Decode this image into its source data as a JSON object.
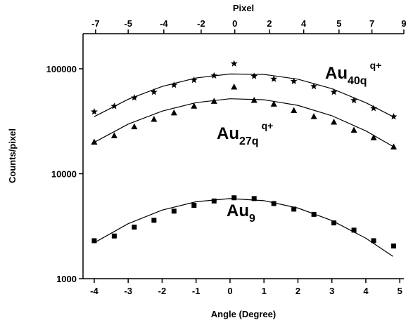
{
  "chart_data": {
    "type": "scatter",
    "x_label": "Angle (Degree)",
    "x2_label": "Pixel",
    "y_label": "Counts/pixel",
    "xlim": [
      -4.33,
      5.12
    ],
    "xticks": [
      -4,
      -3,
      -2,
      -1,
      0,
      1,
      2,
      3,
      4,
      5
    ],
    "x2ticks": [
      {
        "value": -3.96,
        "label": "-7"
      },
      {
        "value": -3.0,
        "label": "-5"
      },
      {
        "value": -1.95,
        "label": "-4"
      },
      {
        "value": -0.85,
        "label": "-2"
      },
      {
        "value": 0.14,
        "label": "0"
      },
      {
        "value": 1.16,
        "label": "2"
      },
      {
        "value": 2.17,
        "label": "4"
      },
      {
        "value": 3.21,
        "label": "5"
      },
      {
        "value": 4.18,
        "label": "7"
      },
      {
        "value": 5.12,
        "label": "9"
      }
    ],
    "ylim": [
      1000,
      216000
    ],
    "yticks": [
      1000,
      10000,
      100000
    ],
    "log_y": true,
    "x": [
      -4,
      -3.41,
      -2.82,
      -2.24,
      -1.65,
      -1.06,
      -0.47,
      0.12,
      0.71,
      1.29,
      1.88,
      2.47,
      3.06,
      3.65,
      4.23,
      4.82
    ],
    "fit_x": [
      -4,
      -3,
      -2,
      -1,
      0,
      1,
      2,
      3,
      4,
      4.8
    ],
    "series": [
      {
        "marker": "square",
        "color": "#000000",
        "label": {
          "base": "Au",
          "sub": "9"
        },
        "values": [
          2300,
          2550,
          3100,
          3600,
          4400,
          5000,
          5500,
          5900,
          5800,
          5200,
          4600,
          4100,
          3400,
          2900,
          2300,
          2050
        ],
        "fit": [
          2200,
          3340,
          4500,
          5410,
          5800,
          5540,
          4710,
          3580,
          2430,
          1630
        ]
      },
      {
        "marker": "triangle",
        "color": "#000000",
        "label": {
          "base": "Au",
          "sub": "27q",
          "sup": "q+"
        },
        "values": [
          20000,
          23000,
          28000,
          33000,
          38000,
          44000,
          49000,
          67000,
          50000,
          46000,
          40000,
          35000,
          31000,
          26000,
          22000,
          18000
        ],
        "fit": [
          19900,
          29700,
          39500,
          47600,
          51800,
          50700,
          44800,
          35700,
          25600,
          18200
        ]
      },
      {
        "marker": "star",
        "color": "#000000",
        "label": {
          "base": "Au",
          "sub": "40q",
          "sup": "q+"
        },
        "values": [
          39000,
          44000,
          53000,
          60000,
          70000,
          78000,
          86000,
          112000,
          85000,
          80000,
          76000,
          68000,
          60000,
          50000,
          42000,
          35000
        ],
        "fit": [
          35000,
          51200,
          67900,
          81800,
          89300,
          88400,
          79600,
          64700,
          47500,
          35000
        ]
      }
    ]
  }
}
